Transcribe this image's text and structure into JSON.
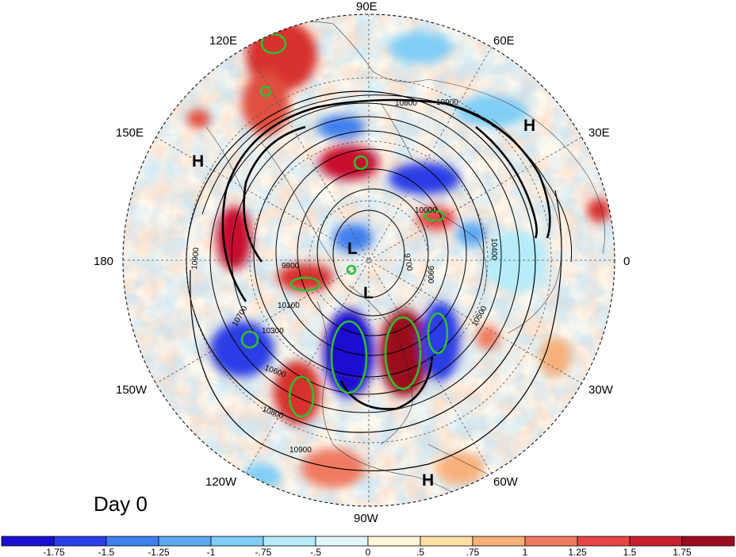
{
  "map": {
    "projection": "north-polar-stereographic",
    "frame_label": "Day 0",
    "longitude_labels": [
      "90E",
      "60E",
      "30E",
      "0",
      "30W",
      "60W",
      "90W",
      "120W",
      "150W",
      "180",
      "150E",
      "120E"
    ],
    "pressure_centers": [
      "H",
      "H",
      "H",
      "L",
      "L"
    ],
    "height_contour_labels": [
      "10900",
      "10800",
      "10700",
      "10600",
      "10500",
      "10400",
      "10300",
      "10100",
      "10000",
      "9900",
      "9800",
      "9700"
    ],
    "colors": {
      "positive_anomaly": "#c8102e",
      "negative_anomaly": "#1a2fd6",
      "significance_contour": "#2fc02f",
      "height_contour": "#000000"
    }
  },
  "colorbar": {
    "tick_labels": [
      "-1.75",
      "-1.5",
      "-1.25",
      "-1",
      "-.75",
      "-.5",
      "0",
      ".5",
      ".75",
      "1",
      "1.25",
      "1.5",
      "1.75"
    ],
    "colors": [
      "#1a0fd0",
      "#2a3ee6",
      "#3f7fee",
      "#5ea8f3",
      "#80cdf6",
      "#b6ecfa",
      "#e2f7fc",
      "#fff6d6",
      "#fde0a5",
      "#f7b07a",
      "#ef7a60",
      "#e84545",
      "#c81e2e",
      "#9b0d1e"
    ]
  }
}
